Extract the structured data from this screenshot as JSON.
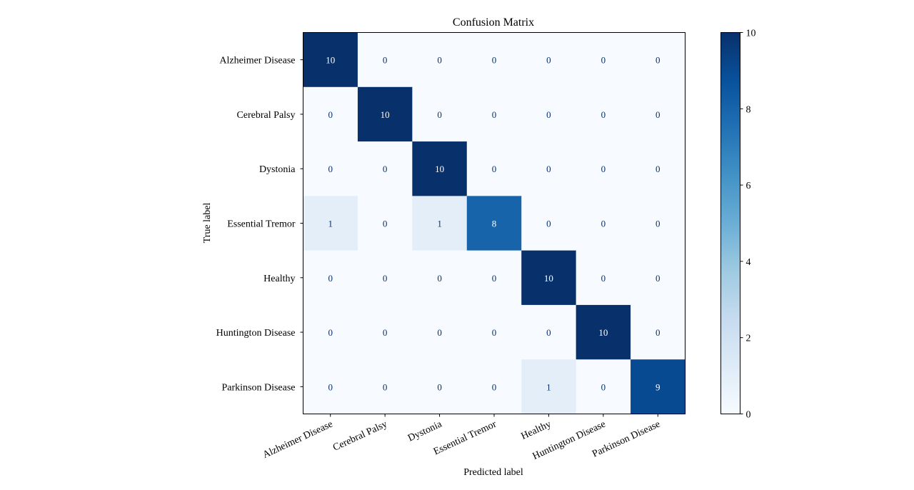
{
  "chart_data": {
    "type": "heatmap",
    "title": "Confusion Matrix",
    "xlabel": "Predicted label",
    "ylabel": "True label",
    "labels": [
      "Alzheimer Disease",
      "Cerebral Palsy",
      "Dystonia",
      "Essential Tremor",
      "Healthy",
      "Huntington Disease",
      "Parkinson Disease"
    ],
    "matrix": [
      [
        10,
        0,
        0,
        0,
        0,
        0,
        0
      ],
      [
        0,
        10,
        0,
        0,
        0,
        0,
        0
      ],
      [
        0,
        0,
        10,
        0,
        0,
        0,
        0
      ],
      [
        1,
        0,
        1,
        8,
        0,
        0,
        0
      ],
      [
        0,
        0,
        0,
        0,
        10,
        0,
        0
      ],
      [
        0,
        0,
        0,
        0,
        0,
        10,
        0
      ],
      [
        0,
        0,
        0,
        0,
        1,
        0,
        9
      ]
    ],
    "colormap": "Blues",
    "vmin": 0,
    "vmax": 10,
    "colorbar_ticks": [
      "0",
      "2",
      "4",
      "6",
      "8",
      "10"
    ],
    "x_tick_rotation_deg": 25
  }
}
